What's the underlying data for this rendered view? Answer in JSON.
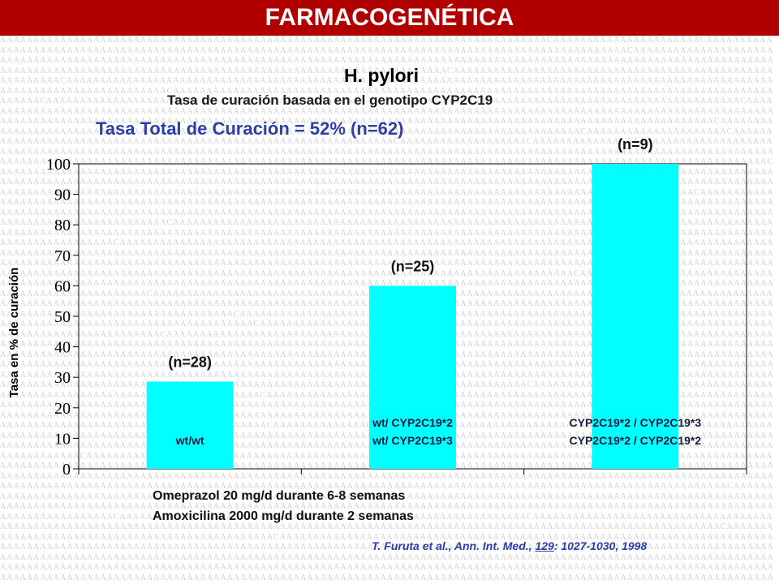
{
  "header": {
    "title": "FARMACOGENÉTICA",
    "organism": "H. pylori",
    "subtitle": "Tasa de curación basada en el genotipo CYP2C19",
    "total": "Tasa Total de Curación = 52%   (n=62)"
  },
  "chart_data": {
    "type": "bar",
    "categories": [
      "wt/wt",
      "wt/ CYP2C19*2 | wt/ CYP2C19*3",
      "CYP2C19*2 / CYP2C19*3 | CYP2C19*2 / CYP2C19*2"
    ],
    "bar_labels": [
      [
        "wt/wt"
      ],
      [
        "wt/ CYP2C19*2",
        "wt/ CYP2C19*3"
      ],
      [
        "CYP2C19*2 / CYP2C19*3",
        "CYP2C19*2 / CYP2C19*2"
      ]
    ],
    "n_labels": [
      "(n=28)",
      "(n=25)",
      "(n=9)"
    ],
    "values": [
      28.6,
      60,
      100
    ],
    "ylabel": "Tasa en % de curación",
    "ylim": [
      0,
      100
    ],
    "yticks": [
      0,
      10,
      20,
      30,
      40,
      50,
      60,
      70,
      80,
      90,
      100
    ],
    "bar_color": "#00ffff",
    "grid": false
  },
  "footer": {
    "line1": "Omeprazol 20 mg/d durante 6-8 semanas",
    "line2": "Amoxicilina 2000 mg/d durante 2 semanas"
  },
  "citation": {
    "prefix": "T. Furuta et al., Ann. Int. Med., ",
    "volume": "129",
    "suffix": ": 1027-1030, 1998"
  },
  "colors": {
    "title_bar": "#b00000",
    "accent_text": "#2c3fa8",
    "bar": "#00ffff"
  }
}
